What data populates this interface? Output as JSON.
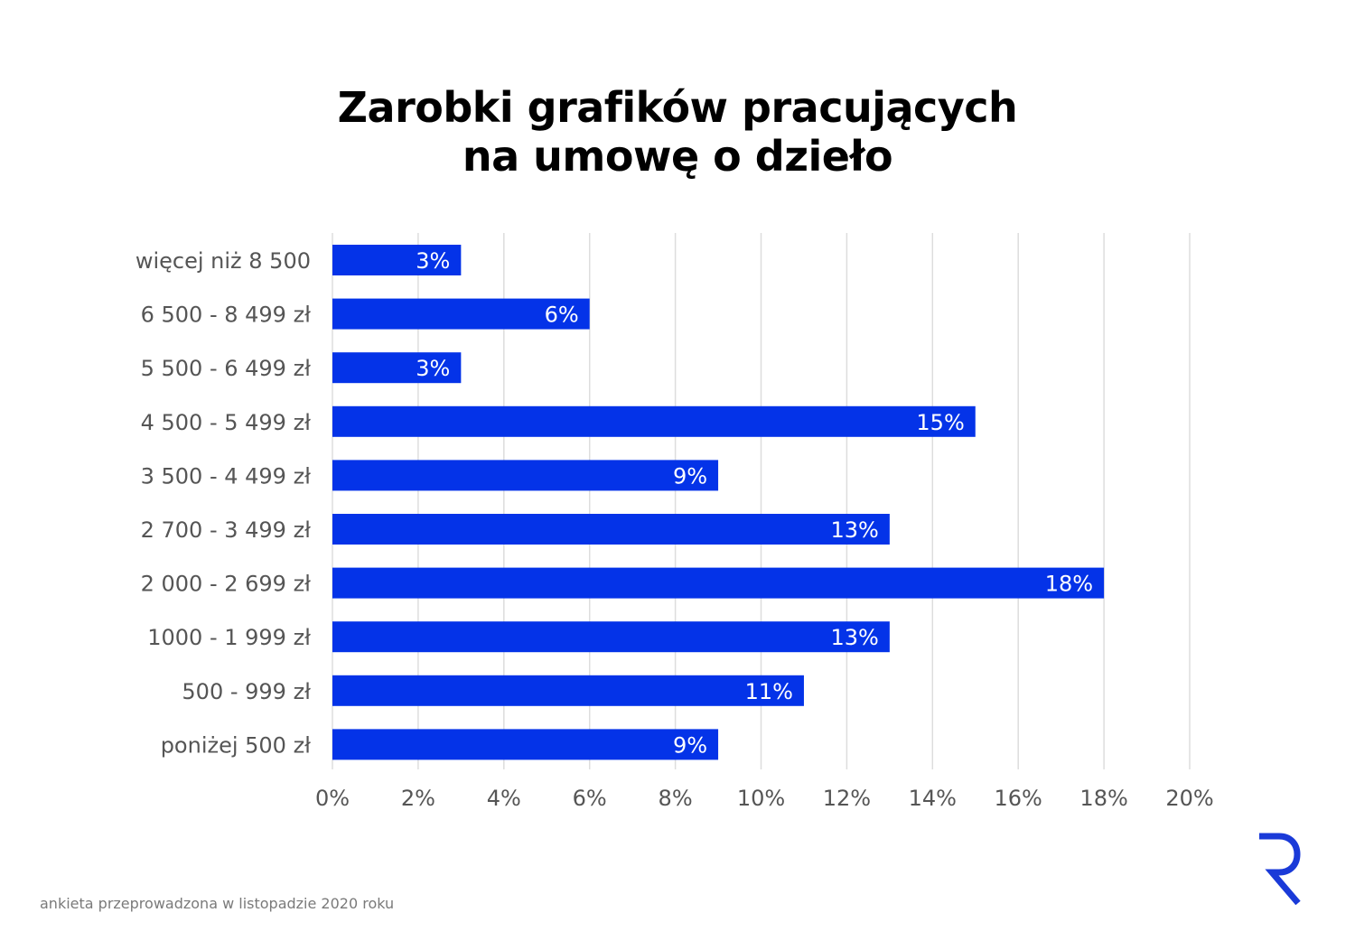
{
  "chart_data": {
    "type": "bar",
    "orientation": "horizontal",
    "title_lines": [
      "Zarobki grafików pracujących",
      "na umowę o dzieło"
    ],
    "categories": [
      "więcej niż 8 500",
      "6 500 - 8 499 zł",
      "5 500 - 6 499 zł",
      "4 500 - 5 499 zł",
      "3 500 - 4 499 zł",
      "2 700 - 3 499 zł",
      "2 000 - 2 699 zł",
      "1000 - 1 999 zł",
      "500 - 999 zł",
      "poniżej 500 zł"
    ],
    "values": [
      3,
      6,
      3,
      15,
      9,
      13,
      18,
      13,
      11,
      9
    ],
    "value_labels": [
      "3%",
      "6%",
      "3%",
      "15%",
      "9%",
      "13%",
      "18%",
      "13%",
      "11%",
      "9%"
    ],
    "x_ticks": [
      "0%",
      "2%",
      "4%",
      "6%",
      "8%",
      "10%",
      "12%",
      "14%",
      "16%",
      "18%",
      "20%"
    ],
    "xlim": [
      0,
      20
    ],
    "grid": "vertical",
    "legend": "none",
    "colors": {
      "bar": "#0433e8",
      "grid": "#dddddd",
      "label_text": "#555555",
      "bar_text": "#ffffff",
      "logo": "#1a3ad8"
    }
  },
  "footnote": "ankieta przeprowadzona w listopadzie 2020 roku",
  "logo": {
    "icon": "r-logo-icon"
  }
}
